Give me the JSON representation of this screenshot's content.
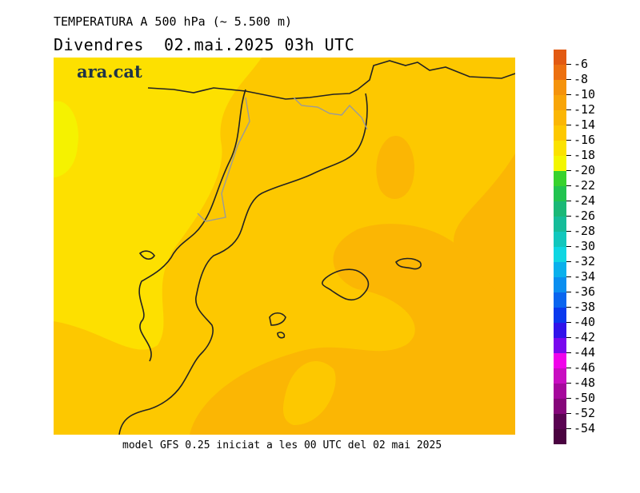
{
  "header": {
    "title": "TEMPERATURA A 500 hPa (~ 5.500 m)",
    "date_line": "Divendres  02.mai.2025 03h UTC"
  },
  "logo": {
    "text": "ara.cat"
  },
  "footer": {
    "model_line": "model GFS 0.25 iniciat a les 00 UTC del 02 mai 2025"
  },
  "legend": {
    "items": [
      {
        "label": "-6",
        "color": "#e25a12"
      },
      {
        "label": "-8",
        "color": "#ec7010"
      },
      {
        "label": "-10",
        "color": "#f5930c"
      },
      {
        "label": "-12",
        "color": "#f8a508"
      },
      {
        "label": "-14",
        "color": "#fbb604"
      },
      {
        "label": "-16",
        "color": "#fdc800"
      },
      {
        "label": "-18",
        "color": "#fbe200"
      },
      {
        "label": "-20",
        "color": "#f3f600"
      },
      {
        "label": "-22",
        "color": "#37d22d"
      },
      {
        "label": "-24",
        "color": "#22c34f"
      },
      {
        "label": "-26",
        "color": "#1bb877"
      },
      {
        "label": "-28",
        "color": "#16bc99"
      },
      {
        "label": "-30",
        "color": "#12c7bd"
      },
      {
        "label": "-32",
        "color": "#0fd6e2"
      },
      {
        "label": "-34",
        "color": "#0ab0ec"
      },
      {
        "label": "-36",
        "color": "#0a8ef0"
      },
      {
        "label": "-38",
        "color": "#0a65ef"
      },
      {
        "label": "-40",
        "color": "#0a39ee"
      },
      {
        "label": "-42",
        "color": "#3113ea"
      },
      {
        "label": "-44",
        "color": "#7a08ee"
      },
      {
        "label": "-46",
        "color": "#f004ea"
      },
      {
        "label": "-48",
        "color": "#c80ec1"
      },
      {
        "label": "-50",
        "color": "#a5089c"
      },
      {
        "label": "-52",
        "color": "#85067a"
      },
      {
        "label": "-54",
        "color": "#5a0352"
      }
    ],
    "bottom_color": "#4a0340"
  }
}
